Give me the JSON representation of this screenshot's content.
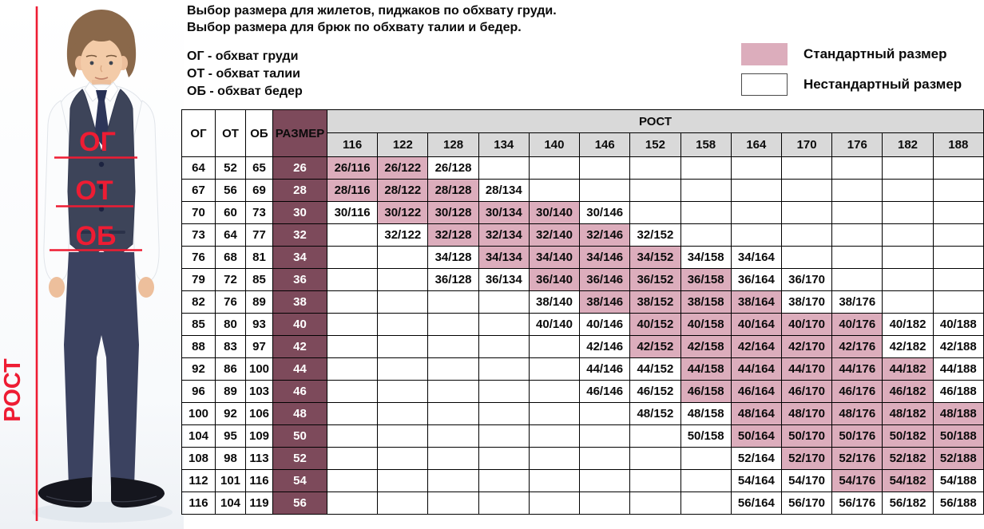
{
  "title": {
    "line1": "Выбор размера для жилетов, пиджаков по обхвату груди.",
    "line2": "Выбор размера для брюк по обхвату талии и бедер."
  },
  "abbreviations": [
    "ОГ - обхват груди",
    "ОТ - обхват талии",
    "ОБ - обхват бедер"
  ],
  "legend": {
    "standard_label": "Стандартный размер",
    "nonstandard_label": "Нестандартный размер"
  },
  "figure": {
    "chest_label": "ОГ",
    "waist_label": "ОТ",
    "hips_label": "ОБ",
    "height_label": "РОСТ"
  },
  "colors": {
    "standard_fill": "#dcadbc",
    "size_column_fill": "#7d4a5b",
    "header_gray": "#d9d9d9",
    "annotation_red": "#ee1c33",
    "border_black": "#000000"
  },
  "chart_data": {
    "type": "table",
    "measure_columns": [
      "ОГ",
      "ОТ",
      "ОБ",
      "РАЗМЕР"
    ],
    "height_header": "РОСТ",
    "heights": [
      "116",
      "122",
      "128",
      "134",
      "140",
      "146",
      "152",
      "158",
      "164",
      "170",
      "176",
      "182",
      "188"
    ],
    "legend": {
      "standard": "Стандартный размер",
      "nonstandard": "Нестандартный размер"
    },
    "rows": [
      {
        "og": "64",
        "ot": "52",
        "ob": "65",
        "size": "26",
        "cells": [
          {
            "height": "116",
            "label": "26/116",
            "standard": true
          },
          {
            "height": "122",
            "label": "26/122",
            "standard": true
          },
          {
            "height": "128",
            "label": "26/128",
            "standard": false
          }
        ]
      },
      {
        "og": "67",
        "ot": "56",
        "ob": "69",
        "size": "28",
        "cells": [
          {
            "height": "116",
            "label": "28/116",
            "standard": true
          },
          {
            "height": "122",
            "label": "28/122",
            "standard": true
          },
          {
            "height": "128",
            "label": "28/128",
            "standard": true
          },
          {
            "height": "134",
            "label": "28/134",
            "standard": false
          }
        ]
      },
      {
        "og": "70",
        "ot": "60",
        "ob": "73",
        "size": "30",
        "cells": [
          {
            "height": "116",
            "label": "30/116",
            "standard": false
          },
          {
            "height": "122",
            "label": "30/122",
            "standard": true
          },
          {
            "height": "128",
            "label": "30/128",
            "standard": true
          },
          {
            "height": "134",
            "label": "30/134",
            "standard": true
          },
          {
            "height": "140",
            "label": "30/140",
            "standard": true
          },
          {
            "height": "146",
            "label": "30/146",
            "standard": false
          }
        ]
      },
      {
        "og": "73",
        "ot": "64",
        "ob": "77",
        "size": "32",
        "cells": [
          {
            "height": "122",
            "label": "32/122",
            "standard": false
          },
          {
            "height": "128",
            "label": "32/128",
            "standard": true
          },
          {
            "height": "134",
            "label": "32/134",
            "standard": true
          },
          {
            "height": "140",
            "label": "32/140",
            "standard": true
          },
          {
            "height": "146",
            "label": "32/146",
            "standard": true
          },
          {
            "height": "152",
            "label": "32/152",
            "standard": false
          }
        ]
      },
      {
        "og": "76",
        "ot": "68",
        "ob": "81",
        "size": "34",
        "cells": [
          {
            "height": "128",
            "label": "34/128",
            "standard": false
          },
          {
            "height": "134",
            "label": "34/134",
            "standard": true
          },
          {
            "height": "140",
            "label": "34/140",
            "standard": true
          },
          {
            "height": "146",
            "label": "34/146",
            "standard": true
          },
          {
            "height": "152",
            "label": "34/152",
            "standard": true
          },
          {
            "height": "158",
            "label": "34/158",
            "standard": false
          },
          {
            "height": "164",
            "label": "34/164",
            "standard": false
          }
        ]
      },
      {
        "og": "79",
        "ot": "72",
        "ob": "85",
        "size": "36",
        "cells": [
          {
            "height": "128",
            "label": "36/128",
            "standard": false
          },
          {
            "height": "134",
            "label": "36/134",
            "standard": false
          },
          {
            "height": "140",
            "label": "36/140",
            "standard": true
          },
          {
            "height": "146",
            "label": "36/146",
            "standard": true
          },
          {
            "height": "152",
            "label": "36/152",
            "standard": true
          },
          {
            "height": "158",
            "label": "36/158",
            "standard": true
          },
          {
            "height": "164",
            "label": "36/164",
            "standard": false
          },
          {
            "height": "170",
            "label": "36/170",
            "standard": false
          }
        ]
      },
      {
        "og": "82",
        "ot": "76",
        "ob": "89",
        "size": "38",
        "cells": [
          {
            "height": "140",
            "label": "38/140",
            "standard": false
          },
          {
            "height": "146",
            "label": "38/146",
            "standard": true
          },
          {
            "height": "152",
            "label": "38/152",
            "standard": true
          },
          {
            "height": "158",
            "label": "38/158",
            "standard": true
          },
          {
            "height": "164",
            "label": "38/164",
            "standard": true
          },
          {
            "height": "170",
            "label": "38/170",
            "standard": false
          },
          {
            "height": "176",
            "label": "38/176",
            "standard": false
          }
        ]
      },
      {
        "og": "85",
        "ot": "80",
        "ob": "93",
        "size": "40",
        "cells": [
          {
            "height": "140",
            "label": "40/140",
            "standard": false
          },
          {
            "height": "146",
            "label": "40/146",
            "standard": false
          },
          {
            "height": "152",
            "label": "40/152",
            "standard": true
          },
          {
            "height": "158",
            "label": "40/158",
            "standard": true
          },
          {
            "height": "164",
            "label": "40/164",
            "standard": true
          },
          {
            "height": "170",
            "label": "40/170",
            "standard": true
          },
          {
            "height": "176",
            "label": "40/176",
            "standard": true
          },
          {
            "height": "182",
            "label": "40/182",
            "standard": false
          },
          {
            "height": "188",
            "label": "40/188",
            "standard": false
          }
        ]
      },
      {
        "og": "88",
        "ot": "83",
        "ob": "97",
        "size": "42",
        "cells": [
          {
            "height": "146",
            "label": "42/146",
            "standard": false
          },
          {
            "height": "152",
            "label": "42/152",
            "standard": true
          },
          {
            "height": "158",
            "label": "42/158",
            "standard": true
          },
          {
            "height": "164",
            "label": "42/164",
            "standard": true
          },
          {
            "height": "170",
            "label": "42/170",
            "standard": true
          },
          {
            "height": "176",
            "label": "42/176",
            "standard": true
          },
          {
            "height": "182",
            "label": "42/182",
            "standard": false
          },
          {
            "height": "188",
            "label": "42/188",
            "standard": false
          }
        ]
      },
      {
        "og": "92",
        "ot": "86",
        "ob": "100",
        "size": "44",
        "cells": [
          {
            "height": "146",
            "label": "44/146",
            "standard": false
          },
          {
            "height": "152",
            "label": "44/152",
            "standard": false
          },
          {
            "height": "158",
            "label": "44/158",
            "standard": true
          },
          {
            "height": "164",
            "label": "44/164",
            "standard": true
          },
          {
            "height": "170",
            "label": "44/170",
            "standard": true
          },
          {
            "height": "176",
            "label": "44/176",
            "standard": true
          },
          {
            "height": "182",
            "label": "44/182",
            "standard": true
          },
          {
            "height": "188",
            "label": "44/188",
            "standard": false
          }
        ]
      },
      {
        "og": "96",
        "ot": "89",
        "ob": "103",
        "size": "46",
        "cells": [
          {
            "height": "146",
            "label": "46/146",
            "standard": false
          },
          {
            "height": "152",
            "label": "46/152",
            "standard": false
          },
          {
            "height": "158",
            "label": "46/158",
            "standard": true
          },
          {
            "height": "164",
            "label": "46/164",
            "standard": true
          },
          {
            "height": "170",
            "label": "46/170",
            "standard": true
          },
          {
            "height": "176",
            "label": "46/176",
            "standard": true
          },
          {
            "height": "182",
            "label": "46/182",
            "standard": true
          },
          {
            "height": "188",
            "label": "46/188",
            "standard": false
          }
        ]
      },
      {
        "og": "100",
        "ot": "92",
        "ob": "106",
        "size": "48",
        "cells": [
          {
            "height": "152",
            "label": "48/152",
            "standard": false
          },
          {
            "height": "158",
            "label": "48/158",
            "standard": false
          },
          {
            "height": "164",
            "label": "48/164",
            "standard": true
          },
          {
            "height": "170",
            "label": "48/170",
            "standard": true
          },
          {
            "height": "176",
            "label": "48/176",
            "standard": true
          },
          {
            "height": "182",
            "label": "48/182",
            "standard": true
          },
          {
            "height": "188",
            "label": "48/188",
            "standard": true
          }
        ]
      },
      {
        "og": "104",
        "ot": "95",
        "ob": "109",
        "size": "50",
        "cells": [
          {
            "height": "158",
            "label": "50/158",
            "standard": false
          },
          {
            "height": "164",
            "label": "50/164",
            "standard": true
          },
          {
            "height": "170",
            "label": "50/170",
            "standard": true
          },
          {
            "height": "176",
            "label": "50/176",
            "standard": true
          },
          {
            "height": "182",
            "label": "50/182",
            "standard": true
          },
          {
            "height": "188",
            "label": "50/188",
            "standard": true
          }
        ]
      },
      {
        "og": "108",
        "ot": "98",
        "ob": "113",
        "size": "52",
        "cells": [
          {
            "height": "164",
            "label": "52/164",
            "standard": false
          },
          {
            "height": "170",
            "label": "52/170",
            "standard": true
          },
          {
            "height": "176",
            "label": "52/176",
            "standard": true
          },
          {
            "height": "182",
            "label": "52/182",
            "standard": true
          },
          {
            "height": "188",
            "label": "52/188",
            "standard": true
          }
        ]
      },
      {
        "og": "112",
        "ot": "101",
        "ob": "116",
        "size": "54",
        "cells": [
          {
            "height": "164",
            "label": "54/164",
            "standard": false
          },
          {
            "height": "170",
            "label": "54/170",
            "standard": false
          },
          {
            "height": "176",
            "label": "54/176",
            "standard": true
          },
          {
            "height": "182",
            "label": "54/182",
            "standard": true
          },
          {
            "height": "188",
            "label": "54/188",
            "standard": false
          }
        ]
      },
      {
        "og": "116",
        "ot": "104",
        "ob": "119",
        "size": "56",
        "cells": [
          {
            "height": "164",
            "label": "56/164",
            "standard": false
          },
          {
            "height": "170",
            "label": "56/170",
            "standard": false
          },
          {
            "height": "176",
            "label": "56/176",
            "standard": false
          },
          {
            "height": "182",
            "label": "56/182",
            "standard": false
          },
          {
            "height": "188",
            "label": "56/188",
            "standard": false
          }
        ]
      }
    ]
  }
}
